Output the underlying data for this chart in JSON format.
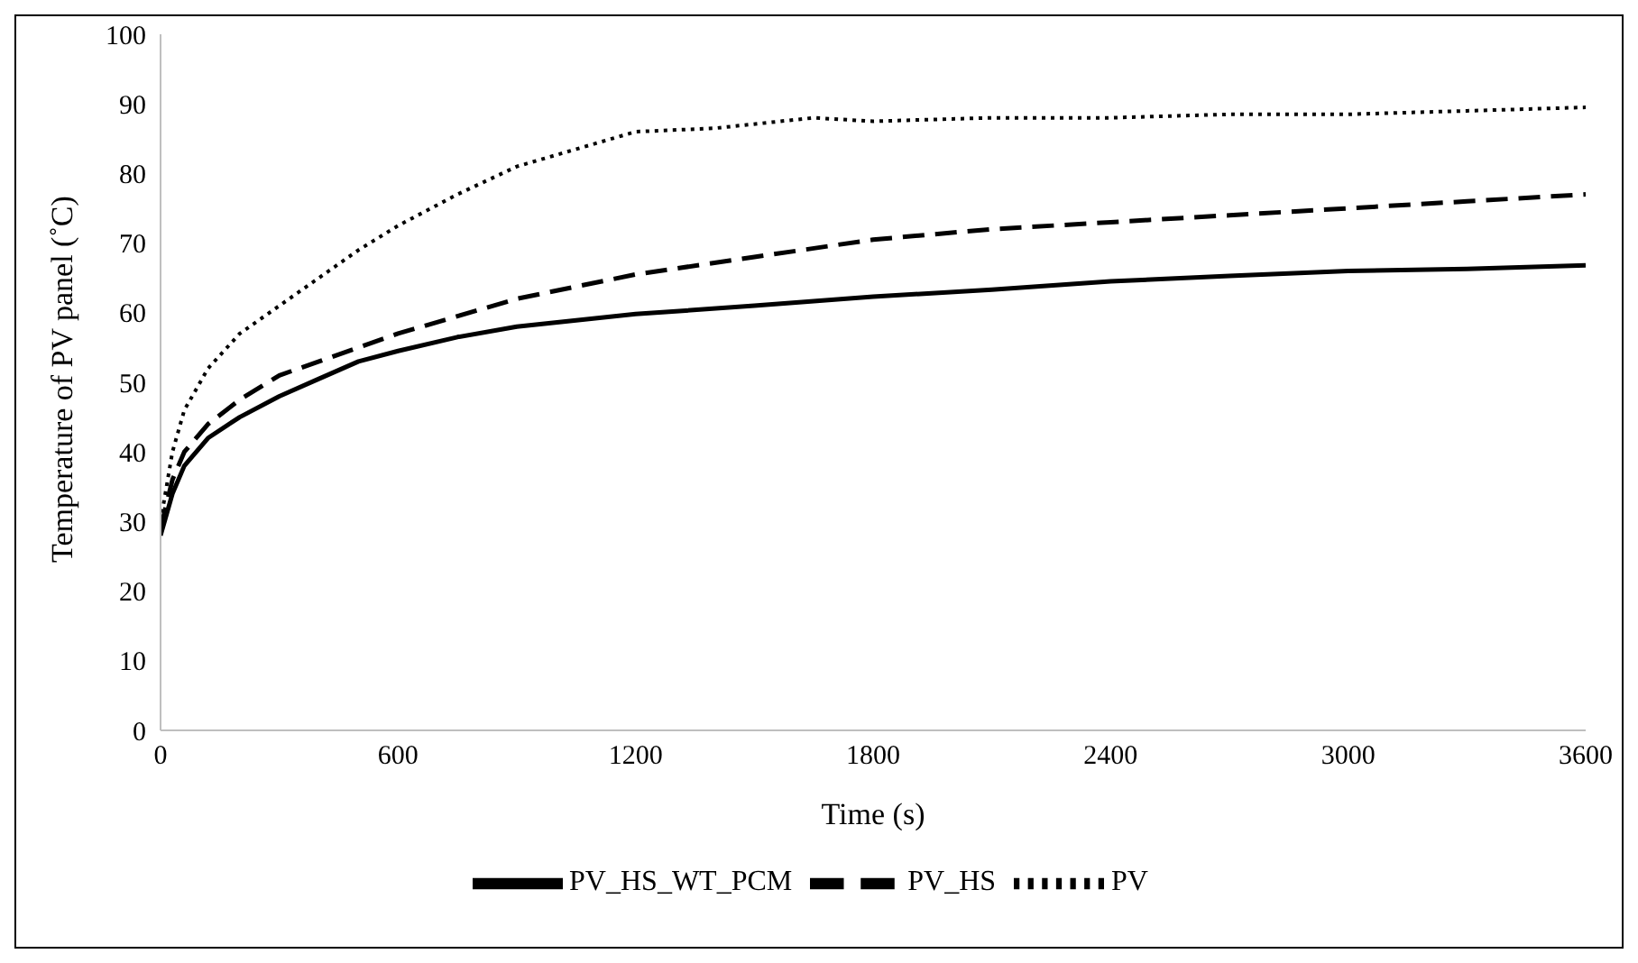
{
  "chart_data": {
    "type": "line",
    "xlabel": "Time (s)",
    "ylabel": "Temperature of PV panel (˚C)",
    "xlim": [
      0,
      3600
    ],
    "xticks": [
      0,
      600,
      1200,
      1800,
      2400,
      3000,
      3600
    ],
    "ylim": [
      0,
      100
    ],
    "yticks": [
      0,
      10,
      20,
      30,
      40,
      50,
      60,
      70,
      80,
      90,
      100
    ],
    "grid": false,
    "legend": "bottom",
    "marker": "none",
    "series": [
      {
        "name": "PV_HS_WT_PCM",
        "color": "#000000",
        "line_style": "solid",
        "x": [
          0,
          30,
          60,
          120,
          200,
          300,
          400,
          500,
          600,
          750,
          900,
          1200,
          1500,
          1800,
          2100,
          2400,
          2700,
          3000,
          3300,
          3600
        ],
        "values": [
          28,
          34,
          38,
          42,
          45,
          48,
          50.5,
          53,
          54.5,
          56.5,
          58,
          59.8,
          61,
          62.3,
          63.3,
          64.5,
          65.3,
          66,
          66.3,
          66.8
        ]
      },
      {
        "name": "PV_HS",
        "color": "#000000",
        "line_style": "dashed",
        "x": [
          0,
          30,
          60,
          120,
          200,
          300,
          400,
          500,
          600,
          750,
          900,
          1200,
          1500,
          1800,
          2100,
          2400,
          2700,
          3000,
          3300,
          3600
        ],
        "values": [
          29,
          36,
          40,
          44,
          47.5,
          51,
          53,
          55,
          57,
          59.5,
          62,
          65.5,
          68,
          70.5,
          72,
          73,
          74,
          75,
          76,
          77
        ]
      },
      {
        "name": "PV",
        "color": "#000000",
        "line_style": "dotted",
        "x": [
          0,
          30,
          60,
          120,
          200,
          300,
          400,
          500,
          600,
          750,
          900,
          1050,
          1200,
          1400,
          1650,
          1800,
          2100,
          2400,
          2700,
          3000,
          3300,
          3600
        ],
        "values": [
          30,
          40,
          46,
          52,
          57,
          61,
          65,
          69,
          72.5,
          77,
          81,
          83.5,
          86,
          86.5,
          88,
          87.5,
          88,
          88,
          88.5,
          88.5,
          89,
          89.5
        ]
      }
    ]
  }
}
